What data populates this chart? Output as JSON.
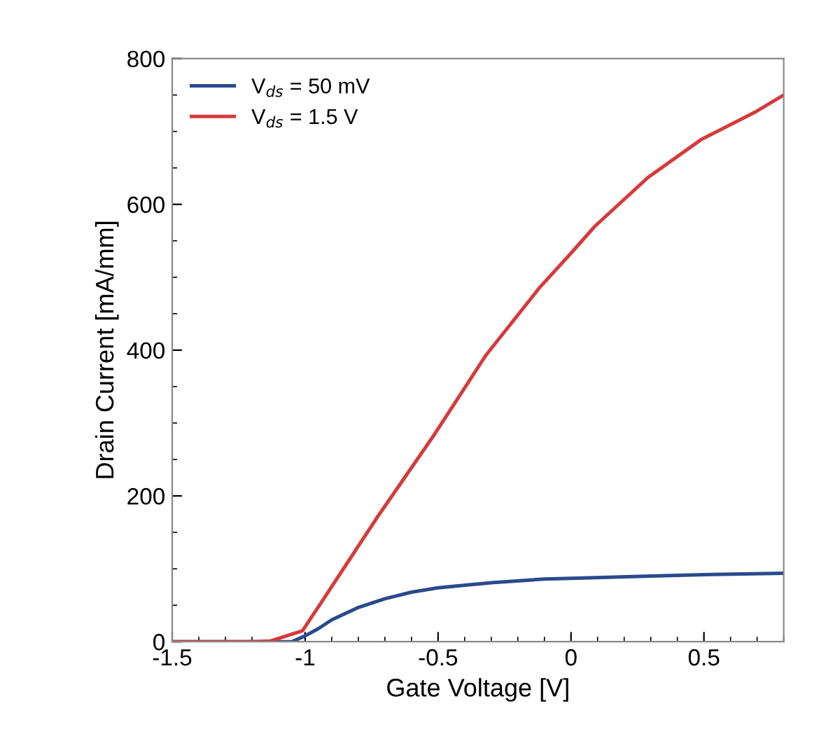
{
  "chart_data": {
    "type": "line",
    "xlabel": "Gate Voltage [V]",
    "ylabel": "Drain Current [mA/mm]",
    "xlim": [
      -1.5,
      0.8
    ],
    "ylim": [
      0,
      800
    ],
    "xticks": [
      -1.5,
      -1,
      -0.5,
      0,
      0.5
    ],
    "yticks": [
      0,
      200,
      400,
      600,
      800
    ],
    "grid": false,
    "legend": "top left",
    "marker": "none",
    "line_style": "solid",
    "series": [
      {
        "name": "V$_{ds}$ = 50 mV",
        "color": "#2b4a8c",
        "x": [
          -1.5,
          -1.2,
          -1.1,
          -1.05,
          -1.0,
          -0.95,
          -0.9,
          -0.8,
          -0.7,
          -0.6,
          -0.5,
          -0.3,
          -0.1,
          0,
          0.3,
          0.5,
          0.8
        ],
        "values": [
          0,
          0,
          0,
          0,
          8,
          18,
          30,
          47,
          59,
          68,
          74,
          81,
          86,
          87,
          90,
          92,
          94
        ]
      },
      {
        "name": "V$_{ds}$ = 1.5 V",
        "color": "#d63a3a",
        "x": [
          -1.5,
          -1.2,
          -1.13,
          -1.01,
          -0.93,
          -0.73,
          -0.52,
          -0.32,
          -0.12,
          0,
          0.09,
          0.29,
          0.49,
          0.69,
          0.8
        ],
        "values": [
          0,
          0,
          1,
          15,
          59,
          170,
          281,
          393,
          485,
          533,
          570,
          637,
          689,
          726,
          750
        ]
      }
    ]
  }
}
